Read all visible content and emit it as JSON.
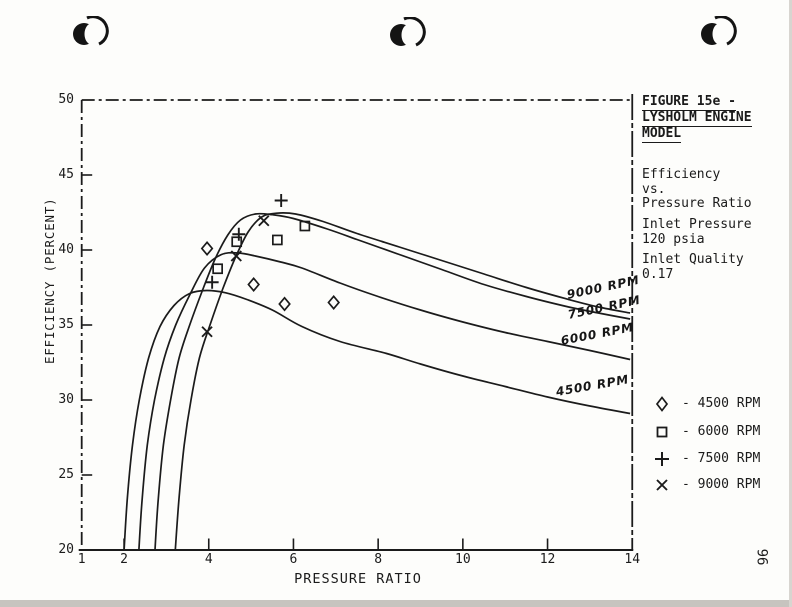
{
  "page": {
    "page_number": "96",
    "ink_color": "#1b1b1b",
    "paper_color": "#fdfdfb"
  },
  "figure_panel": {
    "title_lines": [
      "FIGURE 15e -",
      "LYSHOLM ENGINE",
      "MODEL"
    ],
    "subtitle_lines": [
      "Efficiency",
      "vs.",
      "Pressure Ratio"
    ],
    "inlet_pressure_lines": [
      "Inlet Pressure",
      "120 psia"
    ],
    "inlet_quality_lines": [
      "Inlet Quality",
      "0.17"
    ],
    "legend": [
      {
        "marker": "diamond",
        "label": "- 4500 RPM"
      },
      {
        "marker": "square",
        "label": "- 6000 RPM"
      },
      {
        "marker": "plus",
        "label": "- 7500 RPM"
      },
      {
        "marker": "x",
        "label": "- 9000 RPM"
      }
    ]
  },
  "chart_data": {
    "type": "line+scatter",
    "title": "FIGURE 15e - LYSHOLM ENGINE MODEL",
    "subtitle": "Efficiency vs. Pressure Ratio, Inlet Pressure 120 psia, Inlet Quality 0.17",
    "xlabel": "PRESSURE RATIO",
    "ylabel": "EFFICIENCY (PERCENT)",
    "xlim": [
      1,
      14
    ],
    "ylim": [
      20,
      50
    ],
    "grid": false,
    "legend_position": "right-panel",
    "x_ticks": [
      {
        "value": 1,
        "label": "1"
      },
      {
        "value": 2,
        "label": "2"
      },
      {
        "value": 4,
        "label": "4"
      },
      {
        "value": 6,
        "label": "6"
      },
      {
        "value": 8,
        "label": "8"
      },
      {
        "value": 10,
        "label": "10"
      },
      {
        "value": 12,
        "label": "12"
      },
      {
        "value": 14,
        "label": "14"
      }
    ],
    "x_tick_marks": [
      2,
      4,
      6,
      8,
      10,
      12
    ],
    "y_ticks": [
      {
        "value": 50,
        "label": "50"
      },
      {
        "value": 45,
        "label": "45"
      },
      {
        "value": 40,
        "label": "40"
      },
      {
        "value": 35,
        "label": "35"
      },
      {
        "value": 30,
        "label": "30"
      },
      {
        "value": 25,
        "label": "25"
      },
      {
        "value": 20,
        "label": "20"
      }
    ],
    "y_tick_marks": [
      25,
      30,
      35,
      40,
      45
    ],
    "series": [
      {
        "name": "4500 RPM",
        "marker": "diamond",
        "curve": [
          [
            2.0,
            20
          ],
          [
            2.08,
            23.5
          ],
          [
            2.2,
            27
          ],
          [
            2.36,
            30
          ],
          [
            2.58,
            32.8
          ],
          [
            2.85,
            34.9
          ],
          [
            3.18,
            36.3
          ],
          [
            3.55,
            37.1
          ],
          [
            3.95,
            37.3
          ],
          [
            4.4,
            37.15
          ],
          [
            4.9,
            36.7
          ],
          [
            5.5,
            36.0
          ],
          [
            6.2,
            34.9
          ],
          [
            7.1,
            33.9
          ],
          [
            8.2,
            33.1
          ],
          [
            9,
            32.4
          ],
          [
            10,
            31.6
          ],
          [
            11,
            30.9
          ],
          [
            12,
            30.2
          ],
          [
            13,
            29.6
          ],
          [
            13.95,
            29.1
          ]
        ],
        "points": [
          [
            3.96,
            40.1
          ],
          [
            5.06,
            37.7
          ],
          [
            5.79,
            36.4
          ],
          [
            6.95,
            36.5
          ]
        ]
      },
      {
        "name": "6000 RPM",
        "marker": "square",
        "curve": [
          [
            2.35,
            20
          ],
          [
            2.43,
            23.5
          ],
          [
            2.55,
            27
          ],
          [
            2.72,
            30
          ],
          [
            2.95,
            32.8
          ],
          [
            3.22,
            35
          ],
          [
            3.55,
            37
          ],
          [
            3.9,
            38.8
          ],
          [
            4.3,
            39.7
          ],
          [
            4.7,
            39.8
          ],
          [
            5.1,
            39.6
          ],
          [
            5.7,
            39.2
          ],
          [
            6.2,
            38.8
          ],
          [
            7.1,
            37.8
          ],
          [
            8,
            36.9
          ],
          [
            9,
            36.0
          ],
          [
            10,
            35.2
          ],
          [
            11,
            34.5
          ],
          [
            12,
            33.9
          ],
          [
            13,
            33.3
          ],
          [
            13.95,
            32.7
          ]
        ],
        "points": [
          [
            4.21,
            38.75
          ],
          [
            4.66,
            40.55
          ],
          [
            5.62,
            40.67
          ],
          [
            6.27,
            41.6
          ]
        ]
      },
      {
        "name": "7500 RPM",
        "marker": "plus",
        "curve": [
          [
            2.73,
            20
          ],
          [
            2.81,
            23.5
          ],
          [
            2.93,
            27
          ],
          [
            3.1,
            30
          ],
          [
            3.3,
            32.8
          ],
          [
            3.55,
            35
          ],
          [
            3.85,
            37.3
          ],
          [
            4.15,
            39.4
          ],
          [
            4.45,
            41.0
          ],
          [
            4.75,
            42.0
          ],
          [
            5.1,
            42.4
          ],
          [
            5.5,
            42.35
          ],
          [
            6.0,
            42.1
          ],
          [
            6.8,
            41.4
          ],
          [
            7.5,
            40.7
          ],
          [
            8.5,
            39.7
          ],
          [
            9.5,
            38.7
          ],
          [
            10.5,
            37.7
          ],
          [
            11.5,
            36.9
          ],
          [
            12.5,
            36.2
          ],
          [
            13.2,
            35.8
          ],
          [
            13.95,
            35.4
          ]
        ],
        "points": [
          [
            4.08,
            37.85
          ],
          [
            4.71,
            41.05
          ],
          [
            5.71,
            43.3
          ]
        ]
      },
      {
        "name": "9000 RPM",
        "marker": "x",
        "curve": [
          [
            3.21,
            20
          ],
          [
            3.3,
            23.5
          ],
          [
            3.42,
            27
          ],
          [
            3.58,
            30
          ],
          [
            3.78,
            32.8
          ],
          [
            4.03,
            35
          ],
          [
            4.33,
            37.4
          ],
          [
            4.63,
            39.5
          ],
          [
            4.93,
            41.2
          ],
          [
            5.25,
            42.2
          ],
          [
            5.6,
            42.45
          ],
          [
            6.05,
            42.4
          ],
          [
            6.7,
            41.9
          ],
          [
            7.5,
            41.1
          ],
          [
            8.5,
            40.2
          ],
          [
            9.5,
            39.3
          ],
          [
            10.5,
            38.4
          ],
          [
            11.5,
            37.5
          ],
          [
            12.5,
            36.7
          ],
          [
            13.2,
            36.2
          ],
          [
            13.95,
            35.8
          ]
        ],
        "points": [
          [
            3.96,
            34.55
          ],
          [
            4.65,
            39.6
          ],
          [
            5.3,
            41.95
          ]
        ]
      }
    ]
  }
}
